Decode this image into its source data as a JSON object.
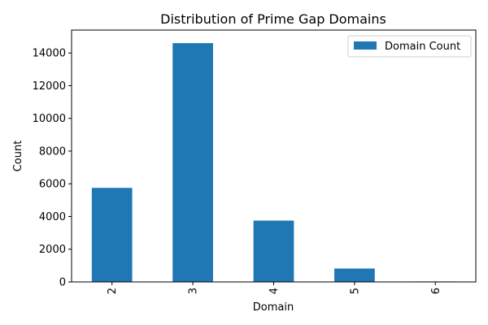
{
  "chart_data": {
    "type": "bar",
    "title": "Distribution of Prime Gap Domains",
    "xlabel": "Domain",
    "ylabel": "Count",
    "categories": [
      "2",
      "3",
      "4",
      "5",
      "6"
    ],
    "series": [
      {
        "name": "Domain Count",
        "color": "#1f77b4",
        "values": [
          5750,
          14600,
          3750,
          820,
          30
        ]
      }
    ],
    "ylim": [
      0,
      15400
    ],
    "yticks": [
      0,
      2000,
      4000,
      6000,
      8000,
      10000,
      12000,
      14000
    ],
    "ytick_labels": [
      "0",
      "2000",
      "4000",
      "6000",
      "8000",
      "10000",
      "12000",
      "14000"
    ],
    "xtick_rotation": "vertical",
    "grid": false,
    "legend_position": "top-right"
  }
}
